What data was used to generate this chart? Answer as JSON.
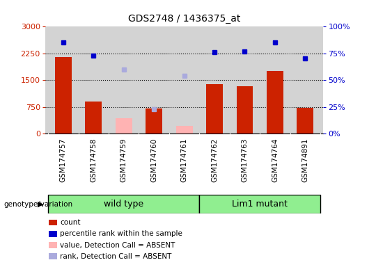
{
  "title": "GDS2748 / 1436375_at",
  "samples": [
    "GSM174757",
    "GSM174758",
    "GSM174759",
    "GSM174760",
    "GSM174761",
    "GSM174762",
    "GSM174763",
    "GSM174764",
    "GSM174891"
  ],
  "count_values": [
    2150,
    900,
    null,
    700,
    null,
    1380,
    1330,
    1750,
    720
  ],
  "count_absent": [
    null,
    null,
    420,
    null,
    210,
    null,
    null,
    null,
    null
  ],
  "percentile_present": [
    85,
    73,
    null,
    null,
    null,
    76,
    77,
    85,
    70
  ],
  "percentile_absent": [
    null,
    null,
    60,
    23,
    54,
    null,
    null,
    null,
    null
  ],
  "left_ylim": [
    0,
    3000
  ],
  "right_ylim": [
    0,
    100
  ],
  "left_yticks": [
    0,
    750,
    1500,
    2250,
    3000
  ],
  "right_yticks": [
    0,
    25,
    50,
    75,
    100
  ],
  "right_yticklabels": [
    "0%",
    "25%",
    "50%",
    "75%",
    "100%"
  ],
  "hlines": [
    750,
    1500,
    2250
  ],
  "bar_color_present": "#cc2200",
  "bar_color_absent": "#ffb3b3",
  "dot_color_present": "#0000cc",
  "dot_color_absent": "#aaaadd",
  "legend_items": [
    {
      "color": "#cc2200",
      "label": "count"
    },
    {
      "color": "#0000cc",
      "label": "percentile rank within the sample"
    },
    {
      "color": "#ffb3b3",
      "label": "value, Detection Call = ABSENT"
    },
    {
      "color": "#aaaadd",
      "label": "rank, Detection Call = ABSENT"
    }
  ],
  "bg_color": "#d3d3d3",
  "wt_color": "#90ee90",
  "lm_color": "#90ee90",
  "wt_label": "wild type",
  "lm_label": "Lim1 mutant",
  "wt_indices": [
    0,
    1,
    2,
    3,
    4
  ],
  "lm_indices": [
    5,
    6,
    7,
    8
  ],
  "group_prefix": "genotype/variation"
}
